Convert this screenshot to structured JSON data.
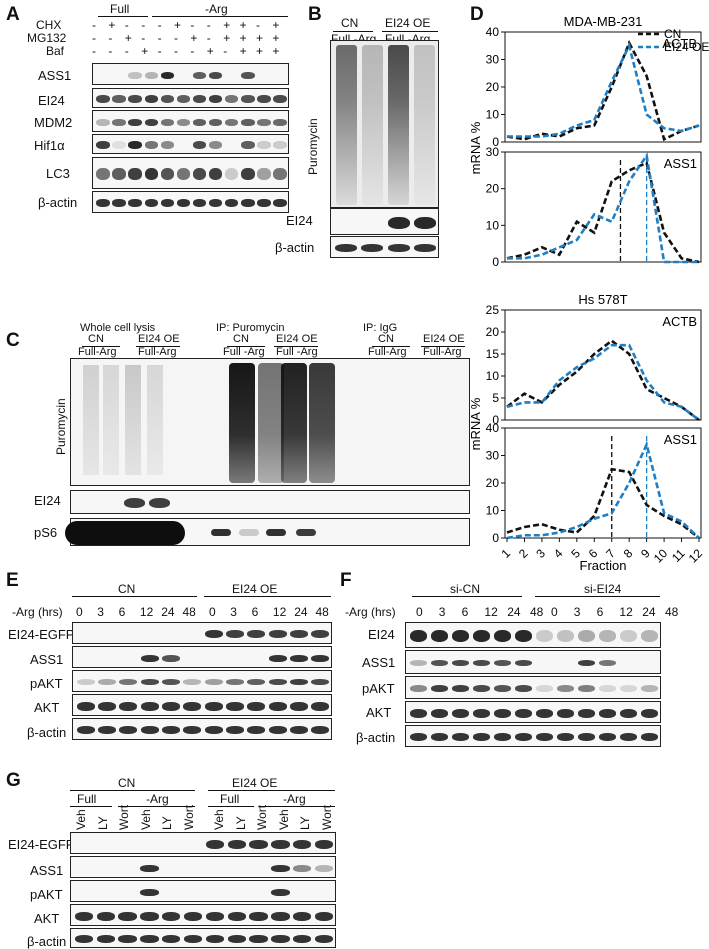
{
  "panels": {
    "A": "A",
    "B": "B",
    "C": "C",
    "D": "D",
    "E": "E",
    "F": "F",
    "G": "G"
  },
  "panelA": {
    "groups": [
      "Full",
      "-Arg"
    ],
    "treatments": [
      {
        "label": "CHX",
        "signs": [
          "-",
          "+",
          "-",
          "-",
          "-",
          "+",
          "-",
          "-",
          "+",
          "+",
          "-",
          "+"
        ]
      },
      {
        "label": "MG132",
        "signs": [
          "-",
          "-",
          "+",
          "-",
          "-",
          "-",
          "+",
          "-",
          "+",
          "+",
          "+",
          "+"
        ]
      },
      {
        "label": "Baf",
        "signs": [
          "-",
          "-",
          "-",
          "+",
          "-",
          "-",
          "-",
          "+",
          "-",
          "+",
          "+",
          "+"
        ]
      }
    ],
    "rows": [
      "ASS1",
      "EI24",
      "MDM2",
      "Hif1α",
      "LC3",
      "β-actin"
    ]
  },
  "panelB": {
    "groups": [
      "CN",
      "EI24 OE"
    ],
    "conditions": "Full -Arg",
    "ylabel": "Puromycin",
    "rows": [
      "EI24",
      "β-actin"
    ]
  },
  "panelC": {
    "sections": [
      "Whole cell lysis",
      "IP: Puromycin",
      "IP: IgG"
    ],
    "groups": [
      "CN",
      "EI24 OE"
    ],
    "conditions": "Full-Arg",
    "conditions_ip": "Full -Arg",
    "ylabel": "Puromycin",
    "rows": [
      "EI24",
      "pS6"
    ]
  },
  "panelE": {
    "groups": [
      "CN",
      "EI24 OE"
    ],
    "time_label": "-Arg (hrs)",
    "times": [
      "0",
      "3",
      "6",
      "12",
      "24",
      "48"
    ],
    "rows": [
      "EI24-EGFP",
      "ASS1",
      "pAKT",
      "AKT",
      "β-actin"
    ]
  },
  "panelF": {
    "groups": [
      "si-CN",
      "si-EI24"
    ],
    "time_label": "-Arg (hrs)",
    "times": [
      "0",
      "3",
      "6",
      "12",
      "24",
      "48"
    ],
    "rows": [
      "EI24",
      "ASS1",
      "pAKT",
      "AKT",
      "β-actin"
    ]
  },
  "panelG": {
    "groups": [
      "CN",
      "EI24 OE"
    ],
    "conditions": [
      "Full",
      "-Arg"
    ],
    "lanes": [
      "Veh",
      "LY",
      "Wort"
    ],
    "rows": [
      "EI24-EGFP",
      "ASS1",
      "pAKT",
      "AKT",
      "β-actin"
    ]
  },
  "chart_data": [
    {
      "type": "line",
      "title": "MDA-MB-231",
      "annotation": "ACTB",
      "x": [
        1,
        2,
        3,
        4,
        5,
        6,
        7,
        8,
        9,
        10,
        11,
        12
      ],
      "ylim": [
        0,
        40
      ],
      "yticks": [
        0,
        10,
        20,
        30,
        40
      ],
      "series": [
        {
          "name": "CN",
          "color": "#111111",
          "values": [
            2,
            1,
            3,
            2,
            5,
            6,
            20,
            36,
            24,
            1,
            4,
            6
          ]
        },
        {
          "name": "EI24 OE",
          "color": "#1f7fc4",
          "values": [
            2,
            2,
            2,
            3,
            6,
            8,
            22,
            35,
            10,
            5,
            4,
            6
          ]
        }
      ]
    },
    {
      "type": "line",
      "annotation": "ASS1",
      "ylabel": "mRNA %",
      "x": [
        1,
        2,
        3,
        4,
        5,
        6,
        7,
        8,
        9,
        10,
        11,
        12
      ],
      "ylim": [
        0,
        30
      ],
      "yticks": [
        0,
        10,
        20,
        30
      ],
      "series": [
        {
          "name": "CN",
          "color": "#111111",
          "values": [
            1,
            2,
            4,
            2,
            11,
            8,
            22,
            25,
            27,
            8,
            1,
            0
          ]
        },
        {
          "name": "EI24 OE",
          "color": "#1f7fc4",
          "values": [
            1,
            1,
            2,
            4,
            6,
            13,
            11,
            22,
            29,
            0,
            0,
            0
          ]
        }
      ],
      "vlines": [
        {
          "x": 7.5,
          "color": "#111111"
        },
        {
          "x": 9,
          "color": "#1f7fc4"
        }
      ]
    },
    {
      "type": "line",
      "title": "Hs 578T",
      "annotation": "ACTB",
      "x": [
        1,
        2,
        3,
        4,
        5,
        6,
        7,
        8,
        9,
        10,
        11,
        12
      ],
      "ylim": [
        0,
        25
      ],
      "yticks": [
        0,
        5,
        10,
        15,
        20,
        25
      ],
      "series": [
        {
          "name": "CN",
          "color": "#111111",
          "values": [
            3,
            6,
            4,
            8,
            11,
            15,
            18,
            15,
            7,
            5,
            3,
            0
          ]
        },
        {
          "name": "EI24 OE",
          "color": "#1f7fc4",
          "values": [
            3,
            4,
            4,
            9,
            12,
            14,
            17,
            17,
            9,
            4,
            3,
            0
          ]
        }
      ]
    },
    {
      "type": "line",
      "annotation": "ASS1",
      "ylabel": "mRNA %",
      "xlabel": "Fraction",
      "x": [
        1,
        2,
        3,
        4,
        5,
        6,
        7,
        8,
        9,
        10,
        11,
        12
      ],
      "ylim": [
        0,
        40
      ],
      "yticks": [
        0,
        10,
        20,
        30,
        40
      ],
      "series": [
        {
          "name": "CN",
          "color": "#111111",
          "values": [
            2,
            4,
            5,
            3,
            2,
            8,
            25,
            24,
            12,
            8,
            5,
            0
          ]
        },
        {
          "name": "EI24 OE",
          "color": "#1f7fc4",
          "values": [
            0,
            1,
            1,
            2,
            4,
            7,
            9,
            20,
            34,
            9,
            6,
            0
          ]
        }
      ],
      "vlines": [
        {
          "x": 7,
          "color": "#111111"
        },
        {
          "x": 9,
          "color": "#1f7fc4"
        }
      ]
    }
  ]
}
